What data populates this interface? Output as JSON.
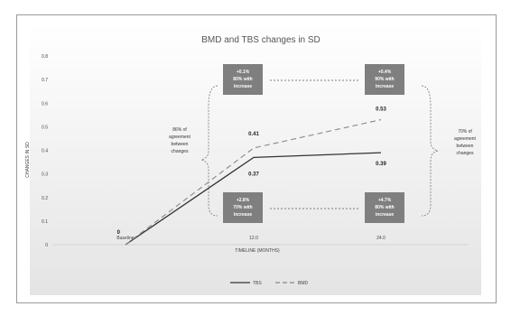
{
  "chart_data": {
    "type": "line",
    "title": "BMD and TBS changes in SD",
    "xlabel": "TIMELINE (MONTHS)",
    "ylabel": "CHANGES IN SD",
    "categories": [
      "Baseline",
      "12.0",
      "24.0"
    ],
    "ylim": [
      0,
      0.8
    ],
    "yticks": [
      "0",
      "0.1",
      "0.2",
      "0.3",
      "0.4",
      "0.5",
      "0.6",
      "0.7",
      "0.8"
    ],
    "grid": false,
    "legend_position": "bottom",
    "series": [
      {
        "name": "TBS",
        "values": [
          0,
          0.37,
          0.39
        ],
        "style": "solid",
        "color": "#333333",
        "labels": [
          "0",
          "0.37",
          "0.39"
        ]
      },
      {
        "name": "BMD",
        "values": [
          0,
          0.41,
          0.53
        ],
        "style": "dashed",
        "color": "#888888",
        "labels": [
          "",
          "0.41",
          "0.53"
        ]
      }
    ],
    "annotations": {
      "left": [
        "86% of",
        "agreement",
        "between",
        "changes"
      ],
      "right": [
        "70% of",
        "agreement",
        "between",
        "changes"
      ],
      "box_top_left": [
        "+0.1%",
        "80% with",
        "increase"
      ],
      "box_top_right": [
        "+0.4%",
        "90% with",
        "increase"
      ],
      "box_bottom_left": [
        "+2.8%",
        "70% with",
        "increase"
      ],
      "box_bottom_right": [
        "+4.7%",
        "80% with",
        "increase"
      ]
    },
    "box_color": "#7f7f7f"
  }
}
